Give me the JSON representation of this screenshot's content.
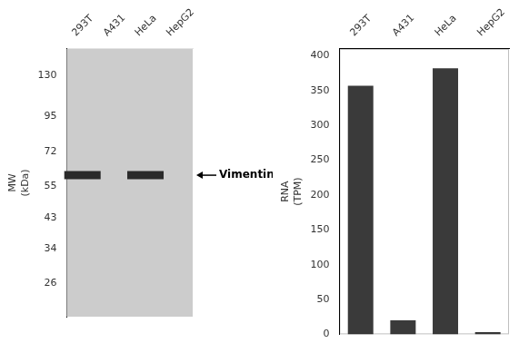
{
  "chart_data": [
    {
      "type": "blot",
      "categories": [
        "293T",
        "A431",
        "HeLa",
        "HepG2"
      ],
      "values": [
        60,
        null,
        60,
        null
      ],
      "color": "#2a2a2a",
      "ylabel": "MW\n(kDa)",
      "log": "y",
      "ylim": [
        20,
        160
      ],
      "yticks": [
        130,
        95,
        72,
        55,
        43,
        34,
        26
      ],
      "annotation": "Vimentin",
      "grid": false,
      "legend": false
    },
    {
      "type": "bar",
      "categories": [
        "293T",
        "A431",
        "HeLa",
        "HepG2"
      ],
      "values": [
        357,
        20,
        382,
        3
      ],
      "color": "#3a3a3a",
      "ylabel": "RNA\n(TPM)",
      "ylim": [
        0,
        410
      ],
      "yticks": [
        0,
        50,
        100,
        150,
        200,
        250,
        300,
        350,
        400
      ],
      "grid": false,
      "legend": false
    }
  ]
}
